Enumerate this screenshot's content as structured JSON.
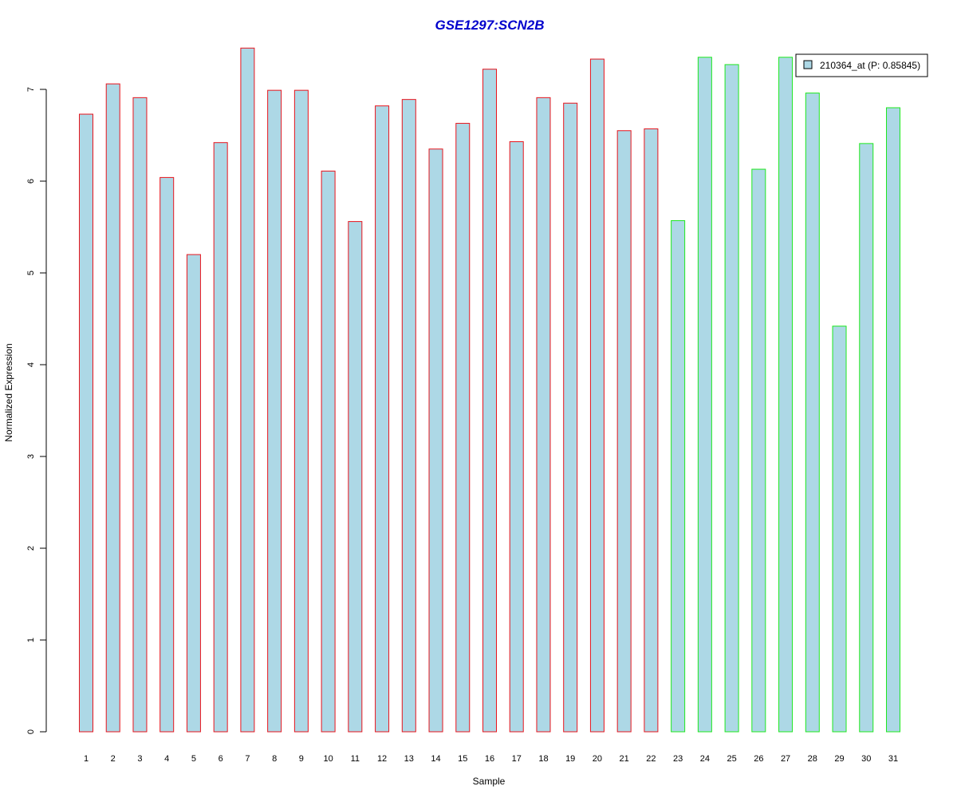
{
  "chart_data": {
    "type": "bar",
    "title": "GSE1297:SCN2B",
    "xlabel": "Sample",
    "ylabel": "Normalized Expression",
    "categories": [
      "1",
      "2",
      "3",
      "4",
      "5",
      "6",
      "7",
      "8",
      "9",
      "10",
      "11",
      "12",
      "13",
      "14",
      "15",
      "16",
      "17",
      "18",
      "19",
      "20",
      "21",
      "22",
      "23",
      "24",
      "25",
      "26",
      "27",
      "28",
      "29",
      "30",
      "31"
    ],
    "series": [
      {
        "name": "210364_at (P: 0.85845)",
        "values": [
          6.73,
          7.06,
          6.91,
          6.04,
          5.2,
          6.42,
          7.45,
          6.99,
          6.99,
          6.11,
          5.56,
          6.82,
          6.89,
          6.35,
          6.63,
          7.22,
          6.43,
          6.91,
          6.85,
          7.33,
          6.55,
          6.57,
          5.57,
          7.35,
          7.27,
          6.13,
          7.35,
          6.96,
          4.42,
          6.41,
          6.8
        ]
      }
    ],
    "group_assignment": [
      "group1",
      "group1",
      "group1",
      "group1",
      "group1",
      "group1",
      "group1",
      "group1",
      "group1",
      "group1",
      "group1",
      "group1",
      "group1",
      "group1",
      "group1",
      "group1",
      "group1",
      "group1",
      "group1",
      "group1",
      "group1",
      "group1",
      "group2",
      "group2",
      "group2",
      "group2",
      "group2",
      "group2",
      "group2",
      "group2",
      "group2"
    ],
    "ylim": [
      0,
      7.5
    ],
    "yticks": [
      0,
      1,
      2,
      3,
      4,
      5,
      6,
      7
    ],
    "grid": false,
    "legend_position": "top-right",
    "colors": {
      "title": "#0000CC",
      "bar_fill": "#ADD8E6",
      "group1_border": "#E8141C",
      "group2_border": "#1EE81E",
      "axis": "#000000"
    }
  }
}
